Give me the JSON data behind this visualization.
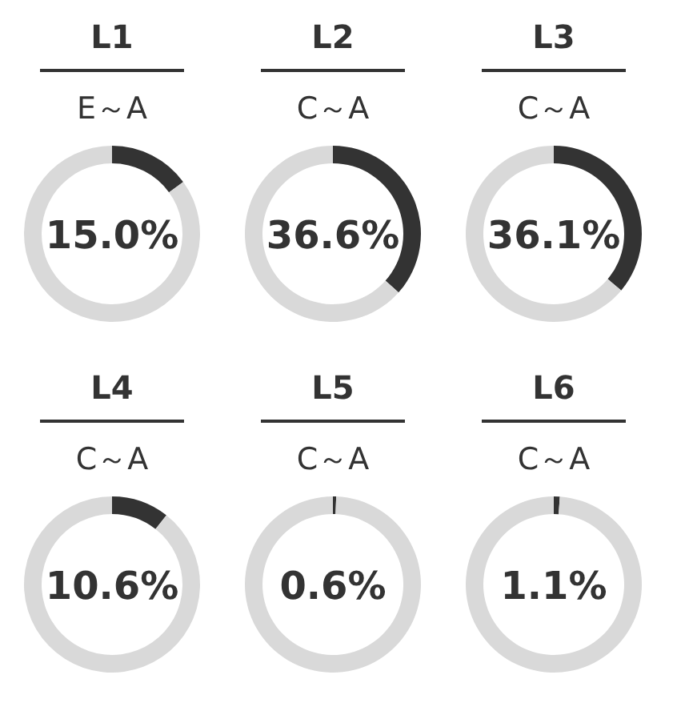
{
  "chart_data": [
    {
      "type": "donut",
      "title": "L1",
      "subtitle": "E～A",
      "categories": [
        null,
        null
      ],
      "values": [
        15.0,
        85.0
      ],
      "colors": [
        "#333333",
        "#d9d9d9"
      ],
      "annotations": [
        "15.0%"
      ]
    },
    {
      "type": "donut",
      "title": "L2",
      "subtitle": "C～A",
      "categories": [
        null,
        null
      ],
      "values": [
        36.6,
        63.4
      ],
      "colors": [
        "#333333",
        "#d9d9d9"
      ],
      "annotations": [
        "36.6%"
      ]
    },
    {
      "type": "donut",
      "title": "L3",
      "subtitle": "C～A",
      "categories": [
        null,
        null
      ],
      "values": [
        36.1,
        63.9
      ],
      "colors": [
        "#333333",
        "#d9d9d9"
      ],
      "annotations": [
        "36.1%"
      ]
    },
    {
      "type": "donut",
      "title": "L4",
      "subtitle": "C～A",
      "categories": [
        null,
        null
      ],
      "values": [
        10.6,
        89.4
      ],
      "colors": [
        "#333333",
        "#d9d9d9"
      ],
      "annotations": [
        "10.6%"
      ]
    },
    {
      "type": "donut",
      "title": "L5",
      "subtitle": "C～A",
      "categories": [
        null,
        null
      ],
      "values": [
        0.6,
        99.4
      ],
      "colors": [
        "#333333",
        "#d9d9d9"
      ],
      "annotations": [
        "0.6%"
      ]
    },
    {
      "type": "donut",
      "title": "L6",
      "subtitle": "C～A",
      "categories": [
        null,
        null
      ],
      "values": [
        1.1,
        98.9
      ],
      "colors": [
        "#333333",
        "#d9d9d9"
      ],
      "annotations": [
        "1.1%"
      ]
    }
  ]
}
